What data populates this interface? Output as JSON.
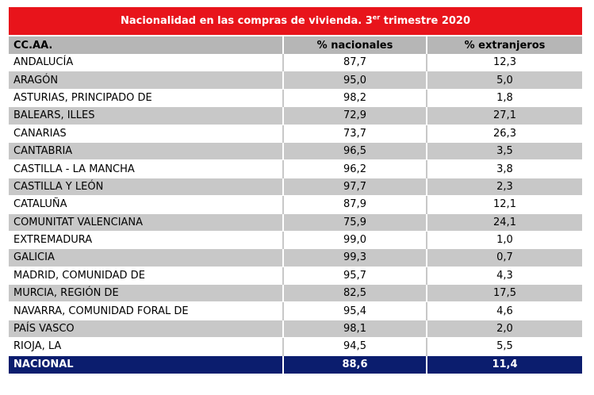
{
  "table": {
    "title_main": "Nacionalidad en las compras de vivienda. 3",
    "title_sup": "er",
    "title_end": " trimestre 2020",
    "headers": [
      "CC.AA.",
      "% nacionales",
      "% extranjeros"
    ],
    "rows": [
      [
        "ANDALUCÍA",
        "87,7",
        "12,3"
      ],
      [
        "ARAGÓN",
        "95,0",
        "5,0"
      ],
      [
        "ASTURIAS, PRINCIPADO DE",
        "98,2",
        "1,8"
      ],
      [
        "BALEARS, ILLES",
        "72,9",
        "27,1"
      ],
      [
        "CANARIAS",
        "73,7",
        "26,3"
      ],
      [
        "CANTABRIA",
        "96,5",
        "3,5"
      ],
      [
        "CASTILLA - LA MANCHA",
        "96,2",
        "3,8"
      ],
      [
        "CASTILLA Y LEÓN",
        "97,7",
        "2,3"
      ],
      [
        "CATALUÑA",
        "87,9",
        "12,1"
      ],
      [
        "COMUNITAT VALENCIANA",
        "75,9",
        "24,1"
      ],
      [
        "EXTREMADURA",
        "99,0",
        "1,0"
      ],
      [
        "GALICIA",
        "99,3",
        "0,7"
      ],
      [
        "MADRID, COMUNIDAD DE",
        "95,7",
        "4,3"
      ],
      [
        "MURCIA, REGIÓN DE",
        "82,5",
        "17,5"
      ],
      [
        "NAVARRA, COMUNIDAD FORAL DE",
        "95,4",
        "4,6"
      ],
      [
        "PAÍS VASCO",
        "98,1",
        "2,0"
      ],
      [
        "RIOJA, LA",
        "94,5",
        "5,5"
      ]
    ],
    "total": [
      "NACIONAL",
      "88,6",
      "11,4"
    ]
  },
  "colors": {
    "title_bg": "#e8141b",
    "header_bg": "#b6b6b6",
    "stripe_bg": "#c8c8c8",
    "total_bg": "#0b1d6e"
  }
}
